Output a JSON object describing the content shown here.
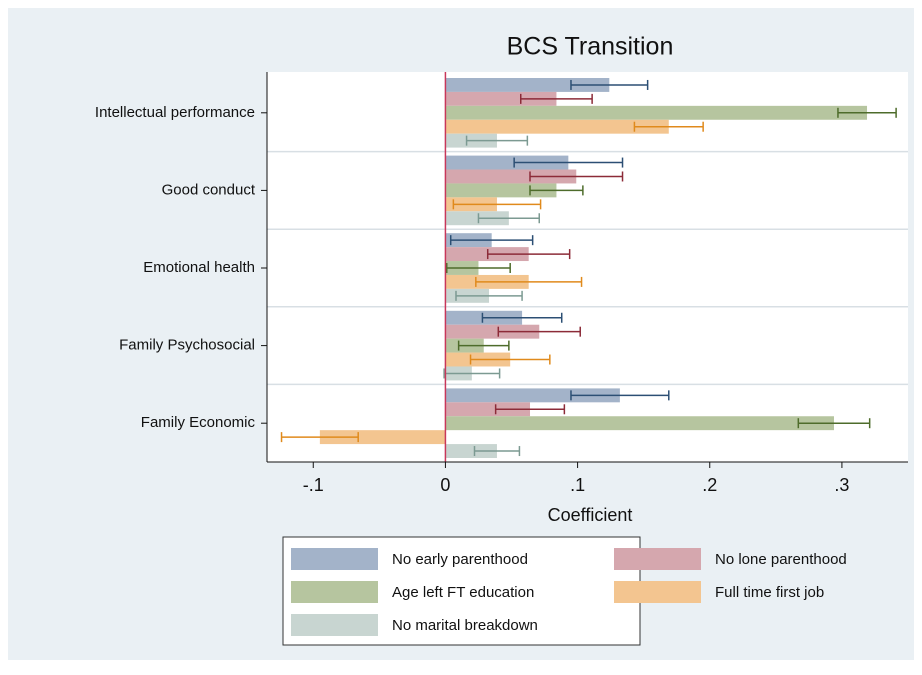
{
  "chart_data": {
    "type": "hbar_errorbar",
    "title": "BCS Transition",
    "x_label": "Coefficient",
    "categories": [
      "Intellectual performance",
      "Good conduct",
      "Emotional health",
      "Family Psychosocial",
      "Family Economic"
    ],
    "series": [
      {
        "name": "No early parenthood",
        "color": "#a3b3c9",
        "error_color": "#2c4f74",
        "values": [
          0.124,
          0.093,
          0.035,
          0.058,
          0.132
        ],
        "errors": [
          0.029,
          0.041,
          0.031,
          0.03,
          0.037
        ]
      },
      {
        "name": "No lone parenthood",
        "color": "#d5a7ae",
        "error_color": "#8c2b38",
        "values": [
          0.084,
          0.099,
          0.063,
          0.071,
          0.064
        ],
        "errors": [
          0.027,
          0.035,
          0.031,
          0.031,
          0.026
        ]
      },
      {
        "name": "Age left FT education",
        "color": "#b6c59f",
        "error_color": "#4e6c2b",
        "values": [
          0.319,
          0.084,
          0.025,
          0.029,
          0.294
        ],
        "errors": [
          0.022,
          0.02,
          0.024,
          0.019,
          0.027
        ]
      },
      {
        "name": "Full time first job",
        "color": "#f3c590",
        "error_color": "#e08a1c",
        "values": [
          0.169,
          0.039,
          0.063,
          0.049,
          -0.095
        ],
        "errors": [
          0.026,
          0.033,
          0.04,
          0.03,
          0.029
        ]
      },
      {
        "name": "No marital breakdown",
        "color": "#c8d5d1",
        "error_color": "#7c9a92",
        "values": [
          0.039,
          0.048,
          0.033,
          0.02,
          0.039
        ],
        "errors": [
          0.023,
          0.023,
          0.025,
          0.021,
          0.017
        ]
      }
    ],
    "xlim": [
      -0.135,
      0.35
    ],
    "xticks": [
      {
        "value": -0.1,
        "label": "-.1"
      },
      0,
      {
        "value": 0.1,
        "label": ".1"
      },
      {
        "value": 0.2,
        "label": ".2"
      },
      {
        "value": 0.3,
        "label": ".3"
      }
    ],
    "reference_line": 0,
    "reference_color": "#c8375a",
    "legend": "bottom"
  }
}
